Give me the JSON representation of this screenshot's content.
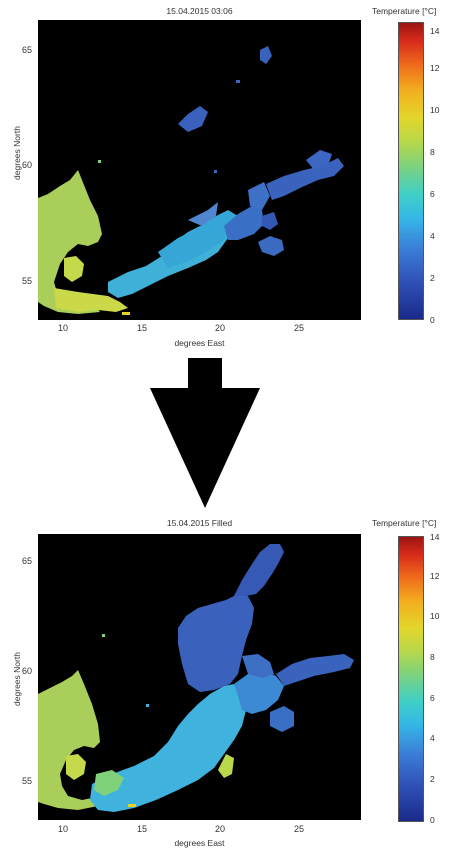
{
  "top_panel": {
    "title": "15.04.2015 03:06",
    "ylabel": "degrees North",
    "xlabel": "degrees East",
    "x_ticks": [
      "10",
      "15",
      "20",
      "25"
    ],
    "y_ticks": [
      "65",
      "60",
      "55"
    ],
    "colorbar_title": "Temperature [°C]",
    "colorbar_ticks": [
      "14",
      "12",
      "10",
      "8",
      "6",
      "4",
      "2",
      "0"
    ],
    "colorbar_range": [
      0,
      14
    ]
  },
  "bottom_panel": {
    "title": "15.04.2015 Filled",
    "ylabel": "degrees North",
    "xlabel": "degrees East",
    "x_ticks": [
      "10",
      "15",
      "20",
      "25"
    ],
    "y_ticks": [
      "65",
      "60",
      "55"
    ],
    "colorbar_title": "Temperature [°C]",
    "colorbar_ticks": [
      "14",
      "12",
      "10",
      "8",
      "6",
      "4",
      "2",
      "0"
    ],
    "colorbar_range": [
      0,
      14
    ]
  },
  "colors": {
    "background": "#000000",
    "arrow": "#000000",
    "cold": "#2f4fb5",
    "mid": "#35b7e6",
    "warm": "#b9d84a"
  },
  "icons": {
    "arrow": "down-arrow-icon"
  }
}
